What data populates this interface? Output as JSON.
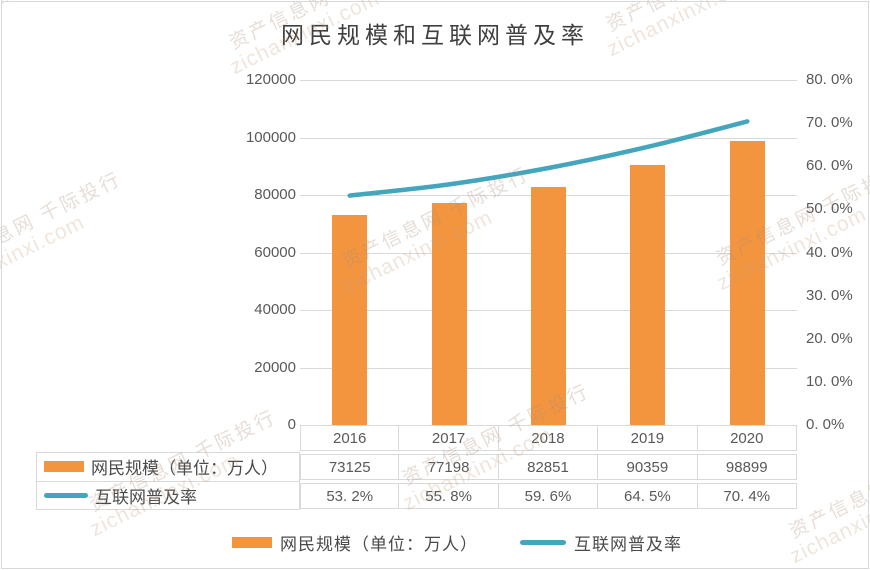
{
  "page": {
    "title": "网民规模和互联网普及率"
  },
  "watermark": {
    "line1": "资产信息网 千际投行",
    "line2": "zichanxinxi.com"
  },
  "chart_data": {
    "type": "combo",
    "title": "网民规模和互联网普及率",
    "categories": [
      "2016",
      "2017",
      "2018",
      "2019",
      "2020"
    ],
    "series": [
      {
        "name": "网民规模（单位：万人）",
        "type": "bar",
        "y_axis": "left",
        "color": "#F3943F",
        "values": [
          73125,
          77198,
          82851,
          90359,
          98899
        ]
      },
      {
        "name": "互联网普及率",
        "type": "line",
        "y_axis": "right",
        "color": "#43A6BD",
        "values": [
          53.2,
          55.8,
          59.6,
          64.5,
          70.4
        ]
      }
    ],
    "left_axis": {
      "min": 0,
      "max": 120000,
      "tick_step": 20000,
      "ticks": [
        "120000",
        "100000",
        "80000",
        "60000",
        "40000",
        "20000",
        "0"
      ]
    },
    "right_axis": {
      "min": 0,
      "max": 80,
      "tick_step": 10,
      "ticks": [
        "80. 0%",
        "70. 0%",
        "60. 0%",
        "50. 0%",
        "40. 0%",
        "30. 0%",
        "20. 0%",
        "10. 0%",
        "0. 0%"
      ]
    },
    "grid": true,
    "legend_position": "bottom"
  },
  "data_table": {
    "years": [
      "2016",
      "2017",
      "2018",
      "2019",
      "2020"
    ],
    "rows": [
      {
        "label": "网民规模（单位：万人）",
        "values": [
          "73125",
          "77198",
          "82851",
          "90359",
          "98899"
        ]
      },
      {
        "label": "互联网普及率",
        "values": [
          "53. 2%",
          "55. 8%",
          "59. 6%",
          "64. 5%",
          "70. 4%"
        ]
      }
    ]
  },
  "legend": {
    "items": [
      {
        "label": "网民规模（单位：万人）",
        "color": "#F3943F",
        "shape": "rect"
      },
      {
        "label": "互联网普及率",
        "color": "#43A6BD",
        "shape": "line"
      }
    ]
  }
}
